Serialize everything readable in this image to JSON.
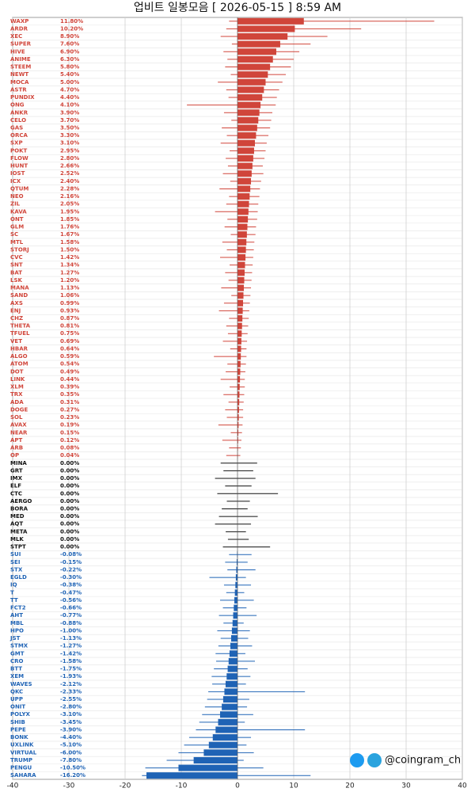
{
  "chart_data": {
    "type": "hbar",
    "title": "업비트 일봉모음 [ 2026-05-15 ]  8:59 AM",
    "watermark": "@coingram_ch",
    "up_color": "#d0453a",
    "flat_color": "#111111",
    "down_color": "#1f63b5",
    "grid": true,
    "xlim": [
      -40,
      40
    ],
    "xticks": [
      -40,
      -30,
      -20,
      -10,
      0,
      10,
      20,
      30,
      40
    ],
    "categories": [
      "WAXP",
      "ARDR",
      "XEC",
      "SUPER",
      "HIVE",
      "ANIME",
      "STEEM",
      "NEWT",
      "MOCA",
      "ASTR",
      "PUNDIX",
      "ONG",
      "ANKR",
      "CELO",
      "GAS",
      "ORCA",
      "SXP",
      "POKT",
      "FLOW",
      "HUNT",
      "IOST",
      "ICX",
      "QTUM",
      "NEO",
      "ZIL",
      "KAVA",
      "ONT",
      "GLM",
      "SC",
      "MTL",
      "STORJ",
      "CVC",
      "SNT",
      "BAT",
      "LSK",
      "MANA",
      "SAND",
      "AXS",
      "ENJ",
      "CHZ",
      "THETA",
      "TFUEL",
      "VET",
      "HBAR",
      "ALGO",
      "ATOM",
      "DOT",
      "LINK",
      "XLM",
      "TRX",
      "ADA",
      "DOGE",
      "SOL",
      "AVAX",
      "NEAR",
      "APT",
      "ARB",
      "OP",
      "MINA",
      "GRT",
      "IMX",
      "ELF",
      "CTC",
      "AERGO",
      "BORA",
      "MED",
      "AQT",
      "META",
      "MLK",
      "STPT",
      "SUI",
      "SEI",
      "STX",
      "EGLD",
      "IQ",
      "T",
      "TT",
      "FCT2",
      "AHT",
      "MBL",
      "HPO",
      "JST",
      "STMX",
      "GMT",
      "CRO",
      "BTT",
      "XEM",
      "WAVES",
      "QKC",
      "UPP",
      "ONIT",
      "POLYX",
      "SHIB",
      "PEPE",
      "BONK",
      "UXLINK",
      "VIRTUAL",
      "TRUMP",
      "PENGU",
      "SAHARA"
    ],
    "values": [
      11.8,
      10.2,
      8.9,
      7.6,
      6.9,
      6.3,
      5.8,
      5.4,
      5.0,
      4.7,
      4.4,
      4.1,
      3.9,
      3.7,
      3.5,
      3.3,
      3.1,
      2.95,
      2.8,
      2.66,
      2.52,
      2.4,
      2.28,
      2.16,
      2.05,
      1.95,
      1.85,
      1.76,
      1.67,
      1.58,
      1.5,
      1.42,
      1.34,
      1.27,
      1.2,
      1.13,
      1.06,
      0.99,
      0.93,
      0.87,
      0.81,
      0.75,
      0.69,
      0.64,
      0.59,
      0.54,
      0.49,
      0.44,
      0.39,
      0.35,
      0.31,
      0.27,
      0.23,
      0.19,
      0.15,
      0.12,
      0.08,
      0.04,
      0,
      0,
      0,
      0,
      0,
      0,
      0,
      0,
      0,
      0,
      0,
      0,
      -0.08,
      -0.15,
      -0.22,
      -0.3,
      -0.38,
      -0.47,
      -0.56,
      -0.66,
      -0.77,
      -0.88,
      -1.0,
      -1.13,
      -1.27,
      -1.42,
      -1.58,
      -1.75,
      -1.93,
      -2.12,
      -2.33,
      -2.55,
      -2.8,
      -3.1,
      -3.45,
      -3.9,
      -4.4,
      -5.1,
      -6.0,
      -7.8,
      -10.5,
      -16.2
    ],
    "value_labels": [
      "11.80%",
      "10.20%",
      "8.90%",
      "7.60%",
      "6.90%",
      "6.30%",
      "5.80%",
      "5.40%",
      "5.00%",
      "4.70%",
      "4.40%",
      "4.10%",
      "3.90%",
      "3.70%",
      "3.50%",
      "3.30%",
      "3.10%",
      "2.95%",
      "2.80%",
      "2.66%",
      "2.52%",
      "2.40%",
      "2.28%",
      "2.16%",
      "2.05%",
      "1.95%",
      "1.85%",
      "1.76%",
      "1.67%",
      "1.58%",
      "1.50%",
      "1.42%",
      "1.34%",
      "1.27%",
      "1.20%",
      "1.13%",
      "1.06%",
      "0.99%",
      "0.93%",
      "0.87%",
      "0.81%",
      "0.75%",
      "0.69%",
      "0.64%",
      "0.59%",
      "0.54%",
      "0.49%",
      "0.44%",
      "0.39%",
      "0.35%",
      "0.31%",
      "0.27%",
      "0.23%",
      "0.19%",
      "0.15%",
      "0.12%",
      "0.08%",
      "0.04%",
      "0.00%",
      "0.00%",
      "0.00%",
      "0.00%",
      "0.00%",
      "0.00%",
      "0.00%",
      "0.00%",
      "0.00%",
      "0.00%",
      "0.00%",
      "0.00%",
      "-0.08%",
      "-0.15%",
      "-0.22%",
      "-0.30%",
      "-0.38%",
      "-0.47%",
      "-0.56%",
      "-0.66%",
      "-0.77%",
      "-0.88%",
      "-1.00%",
      "-1.13%",
      "-1.27%",
      "-1.42%",
      "-1.58%",
      "-1.75%",
      "-1.93%",
      "-2.12%",
      "-2.33%",
      "-2.55%",
      "-2.80%",
      "-3.10%",
      "-3.45%",
      "-3.90%",
      "-4.40%",
      "-5.10%",
      "-6.00%",
      "-7.80%",
      "-10.50%",
      "-16.20%"
    ],
    "lows": [
      -1.5,
      -2,
      -3,
      -1,
      -2.5,
      -1.8,
      -2.2,
      -1.2,
      -3.5,
      -2,
      -1.6,
      -9,
      -2.4,
      -1.1,
      -2.8,
      -1.9,
      -3,
      -1.4,
      -2.1,
      -1.7,
      -2.6,
      -1.3,
      -3.2,
      -1.5,
      -2,
      -4,
      -1.8,
      -2.3,
      -1.2,
      -2.7,
      -1.9,
      -3.1,
      -1.4,
      -2.2,
      -1.6,
      -2.9,
      -1.1,
      -2.4,
      -3.3,
      -1.5,
      -2,
      -1.7,
      -2.6,
      -1.3,
      -4.2,
      -1.8,
      -2.1,
      -3,
      -1.4,
      -2.5,
      -1.6,
      -2.2,
      -1.9,
      -3.4,
      -1.2,
      -2.7,
      -1.5,
      -2,
      -3,
      -2.5,
      -4,
      -2.2,
      -3.6,
      -1.9,
      -2.8,
      -3.3,
      -4,
      -2.1,
      -1.7,
      -2.6,
      -1.5,
      -2.2,
      -1.8,
      -5,
      -2.4,
      -2,
      -3.1,
      -2.6,
      -3.3,
      -2.5,
      -3.6,
      -3,
      -3.4,
      -3.9,
      -3.8,
      -4.2,
      -4.6,
      -4.5,
      -5.2,
      -5.4,
      -5.8,
      -6.3,
      -6.8,
      -7.4,
      -8.6,
      -9.5,
      -10.5,
      -12.6,
      -16.4,
      -17
    ],
    "highs": [
      35,
      22,
      16,
      13,
      11,
      10,
      9.5,
      8.6,
      8,
      7.4,
      7,
      6.8,
      6.2,
      6,
      5.8,
      5.5,
      5.2,
      5,
      4.8,
      4.5,
      4.6,
      4.2,
      4,
      3.9,
      3.7,
      3.6,
      3.5,
      3.3,
      3.2,
      3,
      2.9,
      2.8,
      2.7,
      2.6,
      2.5,
      2.4,
      2.3,
      2.2,
      2.1,
      2,
      1.9,
      1.8,
      1.7,
      1.6,
      1.6,
      1.5,
      1.4,
      1.3,
      1.3,
      1.2,
      1.1,
      1,
      1,
      0.9,
      0.8,
      0.7,
      0.6,
      0.5,
      3.5,
      2.8,
      3.2,
      2.5,
      7.2,
      2.2,
      1.8,
      3.6,
      2.4,
      1.5,
      2.0,
      5.8,
      2.5,
      1.8,
      3.2,
      1.5,
      2.4,
      1.2,
      2.9,
      1.6,
      3.4,
      1.1,
      2.2,
      1.9,
      2.6,
      1.4,
      3.1,
      1.8,
      2.3,
      1.5,
      12,
      2.1,
      1.7,
      2.8,
      1.3,
      12,
      2.4,
      1.6,
      2.9,
      1.1,
      4.6,
      13
    ]
  }
}
